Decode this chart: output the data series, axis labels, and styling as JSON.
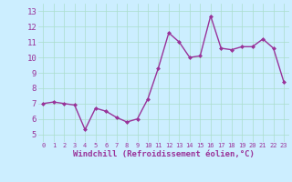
{
  "x": [
    0,
    1,
    2,
    3,
    4,
    5,
    6,
    7,
    8,
    9,
    10,
    11,
    12,
    13,
    14,
    15,
    16,
    17,
    18,
    19,
    20,
    21,
    22,
    23
  ],
  "y": [
    7.0,
    7.1,
    7.0,
    6.9,
    5.3,
    6.7,
    6.5,
    6.1,
    5.8,
    6.0,
    7.3,
    9.3,
    11.6,
    11.0,
    10.0,
    10.1,
    12.7,
    10.6,
    10.5,
    10.7,
    10.7,
    11.2,
    10.6,
    8.4
  ],
  "xlim": [
    -0.5,
    23.5
  ],
  "ylim": [
    4.5,
    13.5
  ],
  "yticks": [
    5,
    6,
    7,
    8,
    9,
    10,
    11,
    12,
    13
  ],
  "xticks": [
    0,
    1,
    2,
    3,
    4,
    5,
    6,
    7,
    8,
    9,
    10,
    11,
    12,
    13,
    14,
    15,
    16,
    17,
    18,
    19,
    20,
    21,
    22,
    23
  ],
  "xlabel": "Windchill (Refroidissement éolien,°C)",
  "line_color": "#993399",
  "marker": "D",
  "marker_size": 2.0,
  "bg_color": "#cceeff",
  "grid_color": "#aaddcc",
  "tick_color": "#993399",
  "label_color": "#993399",
  "line_width": 1.0,
  "xtick_fontsize": 5.0,
  "ytick_fontsize": 6.5,
  "xlabel_fontsize": 6.5
}
